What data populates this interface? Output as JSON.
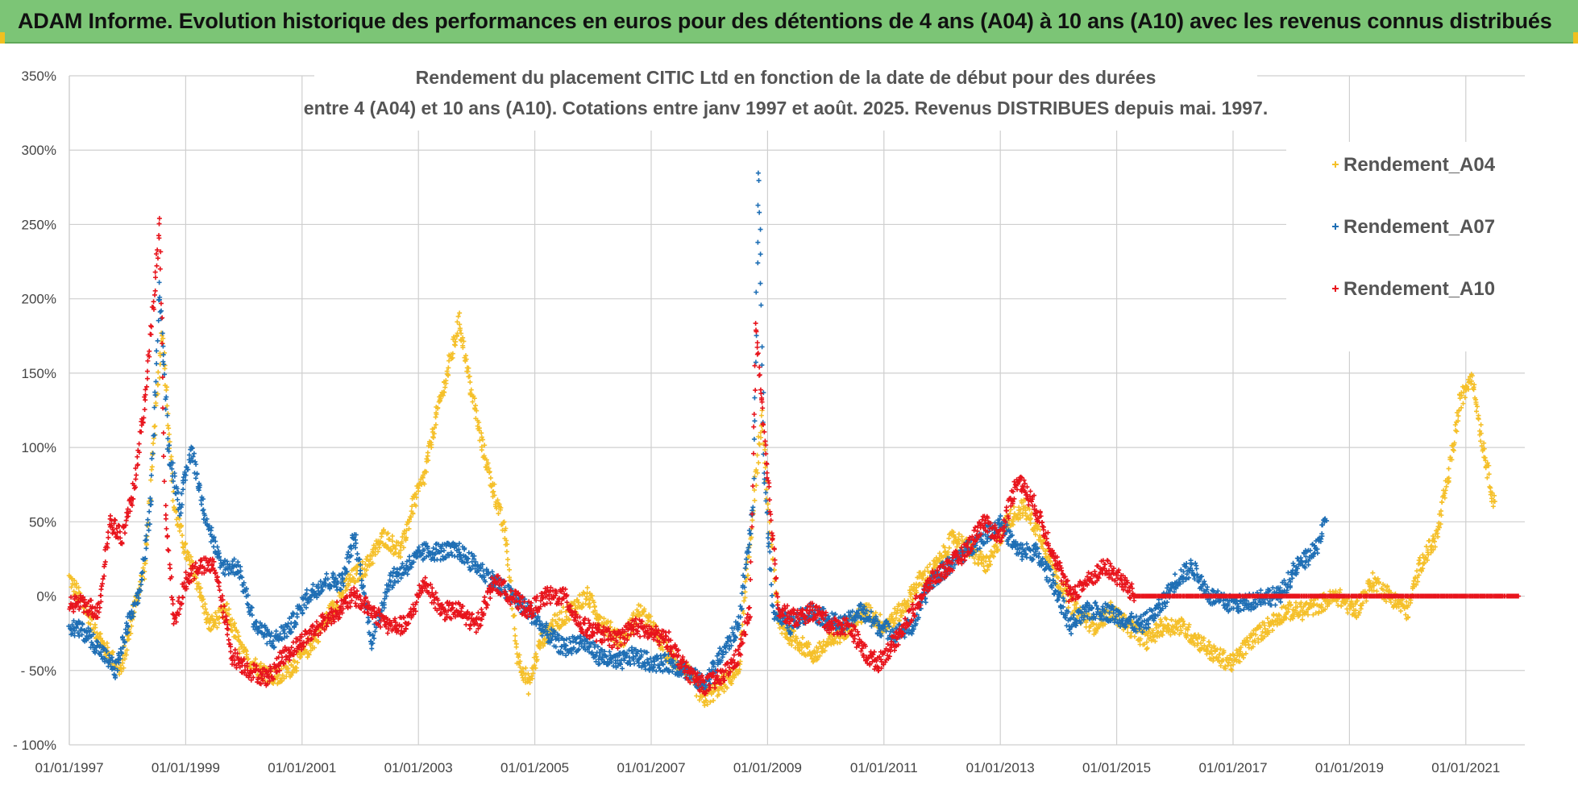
{
  "header": {
    "title": "ADAM Informe. Evolution historique des performances en euros pour des détentions de 4 ans (A04) à 10 ans (A10) avec les revenus connus distribués"
  },
  "chart_data": {
    "type": "scatter",
    "title_lines": [
      "Rendement du placement CITIC Ltd en fonction de la date de début pour des durées",
      "entre 4 (A04) et 10 ans (A10).  Cotations entre janv 1997 et août. 2025. Revenus DISTRIBUES depuis mai. 1997."
    ],
    "xlabel": "",
    "ylabel": "",
    "x_range": [
      "1997-01-01",
      "2021-12-31"
    ],
    "ylim": [
      -100,
      350
    ],
    "y_ticks": [
      350,
      300,
      250,
      200,
      150,
      100,
      50,
      0,
      -50,
      -100
    ],
    "y_tick_labels": [
      "350%",
      "300%",
      "250%",
      "200%",
      "150%",
      "100%",
      "50%",
      "0%",
      "- 50%",
      "- 100%"
    ],
    "x_tick_labels": [
      "01/01/1997",
      "01/01/1999",
      "01/01/2001",
      "01/01/2003",
      "01/01/2005",
      "01/01/2007",
      "01/01/2009",
      "01/01/2011",
      "01/01/2013",
      "01/01/2015",
      "01/01/2017",
      "01/01/2019",
      "01/01/2021"
    ],
    "x_tick_years": [
      1997,
      1999,
      2001,
      2003,
      2005,
      2007,
      2009,
      2011,
      2013,
      2015,
      2017,
      2019,
      2021
    ],
    "grid": "horizontal",
    "legend_position": "top-right",
    "marker": "+",
    "series": [
      {
        "name": "Rendement_A04",
        "color": "#f5c02a",
        "x": [
          1997.0,
          1997.3,
          1997.6,
          1997.9,
          1998.1,
          1998.3,
          1998.5,
          1998.6,
          1998.8,
          1999.0,
          1999.2,
          1999.4,
          1999.7,
          2000.0,
          2000.3,
          2000.6,
          2000.9,
          2001.2,
          2001.5,
          2001.8,
          2002.1,
          2002.4,
          2002.7,
          2002.9,
          2003.1,
          2003.3,
          2003.5,
          2003.7,
          2003.9,
          2004.1,
          2004.3,
          2004.5,
          2004.7,
          2004.9,
          2005.1,
          2005.3,
          2005.6,
          2005.9,
          2006.2,
          2006.5,
          2006.8,
          2007.0,
          2007.3,
          2007.6,
          2007.9,
          2008.2,
          2008.5,
          2008.8,
          2008.9,
          2009.0,
          2009.2,
          2009.5,
          2009.8,
          2010.1,
          2010.4,
          2010.7,
          2011.0,
          2011.3,
          2011.6,
          2011.9,
          2012.2,
          2012.5,
          2012.8,
          2013.1,
          2013.4,
          2013.7,
          2014.0,
          2014.3,
          2014.6,
          2014.9,
          2015.2,
          2015.5,
          2015.8,
          2016.1,
          2016.4,
          2016.7,
          2017.0,
          2017.3,
          2017.6,
          2017.9,
          2018.2,
          2018.5,
          2018.8,
          2019.1,
          2019.4,
          2019.7,
          2020.0,
          2020.2,
          2020.5,
          2020.7,
          2020.9,
          2021.1,
          2021.3,
          2021.5
        ],
        "y": [
          12,
          -10,
          -35,
          -50,
          -10,
          20,
          130,
          180,
          60,
          30,
          10,
          -20,
          -10,
          -40,
          -50,
          -55,
          -45,
          -30,
          -10,
          10,
          20,
          40,
          30,
          60,
          80,
          120,
          150,
          185,
          140,
          100,
          70,
          40,
          -40,
          -60,
          -30,
          -20,
          -10,
          0,
          -20,
          -30,
          -10,
          -20,
          -40,
          -50,
          -70,
          -60,
          -50,
          80,
          120,
          60,
          -20,
          -30,
          -40,
          -30,
          -20,
          -10,
          -20,
          -10,
          10,
          20,
          40,
          30,
          20,
          50,
          60,
          40,
          10,
          -10,
          -20,
          -10,
          -20,
          -30,
          -20,
          -20,
          -30,
          -40,
          -45,
          -30,
          -20,
          -10,
          -10,
          -5,
          0,
          -10,
          10,
          0,
          -10,
          20,
          40,
          80,
          130,
          150,
          100,
          60
        ],
        "noise": 6
      },
      {
        "name": "Rendement_A07",
        "color": "#1f6fb5",
        "x": [
          1997.0,
          1997.3,
          1997.6,
          1997.8,
          1998.0,
          1998.2,
          1998.4,
          1998.55,
          1998.7,
          1998.9,
          1999.1,
          1999.3,
          1999.6,
          1999.9,
          2000.2,
          2000.5,
          2000.8,
          2001.1,
          2001.4,
          2001.7,
          2001.9,
          2002.2,
          2002.5,
          2002.8,
          2003.1,
          2003.4,
          2003.7,
          2004.0,
          2004.3,
          2004.6,
          2004.9,
          2005.2,
          2005.5,
          2005.8,
          2006.1,
          2006.4,
          2006.7,
          2007.0,
          2007.3,
          2007.6,
          2007.9,
          2008.2,
          2008.5,
          2008.75,
          2008.85,
          2008.95,
          2009.1,
          2009.4,
          2009.7,
          2010.0,
          2010.3,
          2010.6,
          2010.9,
          2011.2,
          2011.5,
          2011.8,
          2012.1,
          2012.4,
          2012.7,
          2013.0,
          2013.3,
          2013.6,
          2013.9,
          2014.2,
          2014.5,
          2014.8,
          2015.1,
          2015.4,
          2015.7,
          2016.0,
          2016.3,
          2016.6,
          2016.9,
          2017.2,
          2017.5,
          2017.8,
          2018.1,
          2018.4,
          2018.6
        ],
        "y": [
          -20,
          -25,
          -40,
          -50,
          -20,
          0,
          60,
          210,
          100,
          60,
          100,
          60,
          20,
          20,
          -20,
          -30,
          -20,
          0,
          10,
          10,
          40,
          -30,
          10,
          20,
          30,
          30,
          30,
          20,
          10,
          0,
          -10,
          -25,
          -35,
          -30,
          -40,
          -45,
          -40,
          -45,
          -45,
          -50,
          -60,
          -40,
          -20,
          60,
          280,
          80,
          -10,
          -20,
          -10,
          -15,
          -20,
          -10,
          -20,
          -25,
          -20,
          10,
          20,
          30,
          40,
          50,
          30,
          30,
          10,
          -20,
          -10,
          -10,
          -15,
          -20,
          -10,
          10,
          20,
          0,
          -5,
          -5,
          0,
          0,
          20,
          30,
          50
        ],
        "noise": 6
      },
      {
        "name": "Rendement_A10",
        "color": "#e8141c",
        "x": [
          1997.0,
          1997.2,
          1997.5,
          1997.7,
          1997.9,
          1998.1,
          1998.3,
          1998.45,
          1998.55,
          1998.65,
          1998.8,
          1999.0,
          1999.2,
          1999.5,
          1999.8,
          2000.1,
          2000.4,
          2000.7,
          2001.0,
          2001.3,
          2001.6,
          2001.9,
          2002.2,
          2002.5,
          2002.8,
          2003.1,
          2003.4,
          2003.7,
          2004.0,
          2004.3,
          2004.6,
          2004.9,
          2005.2,
          2005.5,
          2005.8,
          2006.1,
          2006.4,
          2006.7,
          2007.0,
          2007.3,
          2007.6,
          2007.9,
          2008.2,
          2008.5,
          2008.7,
          2008.8,
          2008.9,
          2009.0,
          2009.2,
          2009.5,
          2009.8,
          2010.1,
          2010.4,
          2010.7,
          2010.9,
          2011.2,
          2011.5,
          2011.8,
          2012.1,
          2012.4,
          2012.7,
          2013.0,
          2013.3,
          2013.6,
          2013.9,
          2014.2,
          2014.5,
          2014.8,
          2015.1,
          2015.3
        ],
        "y": [
          -5,
          -5,
          -10,
          50,
          40,
          70,
          130,
          200,
          250,
          60,
          -20,
          10,
          20,
          20,
          -40,
          -50,
          -55,
          -40,
          -30,
          -20,
          -10,
          0,
          -10,
          -20,
          -20,
          10,
          -10,
          -10,
          -20,
          10,
          0,
          -10,
          0,
          0,
          -20,
          -25,
          -30,
          -20,
          -25,
          -30,
          -50,
          -60,
          -55,
          -40,
          -10,
          180,
          130,
          80,
          -10,
          -15,
          -10,
          -20,
          -20,
          -40,
          -45,
          -30,
          -10,
          10,
          20,
          30,
          50,
          40,
          80,
          60,
          30,
          0,
          10,
          20,
          10,
          0
        ],
        "noise": 6
      },
      {
        "name": "A10_zero_line",
        "color": "#e8141c",
        "x": [
          2015.3,
          2021.9
        ],
        "y": [
          0,
          0
        ],
        "noise": 0
      }
    ],
    "legend": [
      {
        "label": "Rendement_A04",
        "color": "#f5c02a"
      },
      {
        "label": "Rendement_A07",
        "color": "#1f6fb5"
      },
      {
        "label": "Rendement_A10",
        "color": "#e8141c"
      }
    ]
  }
}
